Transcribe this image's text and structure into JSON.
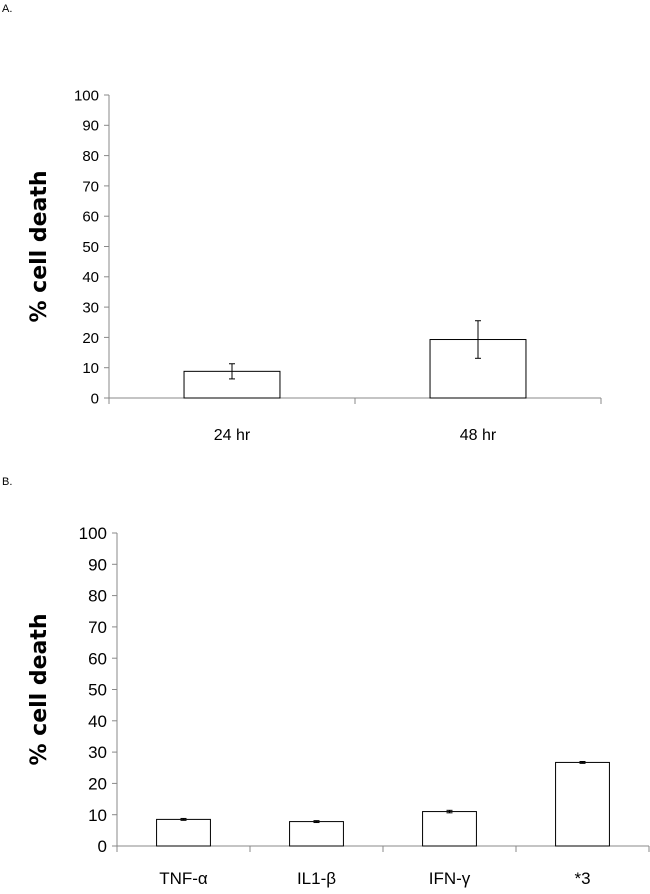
{
  "panels": {
    "a": {
      "label": "A."
    },
    "b": {
      "label": "B."
    }
  },
  "chart_data": [
    {
      "type": "bar",
      "categories": [
        "24 hr",
        "48 hr"
      ],
      "values": [
        8.8,
        19.3
      ],
      "errors": [
        2.5,
        6.2
      ],
      "ylabel": "% cell death",
      "xlabel": "",
      "ylim": [
        0,
        100
      ],
      "yticks": [
        0,
        10,
        20,
        30,
        40,
        50,
        60,
        70,
        80,
        90,
        100
      ],
      "grid": false,
      "bar_color": "#ffffff",
      "edge_color": "#000000"
    },
    {
      "type": "bar",
      "categories": [
        "TNF-α",
        "IL1-β",
        "IFN-γ",
        "*3"
      ],
      "values": [
        8.5,
        7.8,
        11.0,
        26.7
      ],
      "errors": [
        0.3,
        0.3,
        0.4,
        0.3
      ],
      "ylabel": "% cell death",
      "xlabel": "",
      "ylim": [
        0,
        100
      ],
      "yticks": [
        0,
        10,
        20,
        30,
        40,
        50,
        60,
        70,
        80,
        90,
        100
      ],
      "grid": false,
      "bar_color": "#ffffff",
      "edge_color": "#000000"
    }
  ]
}
